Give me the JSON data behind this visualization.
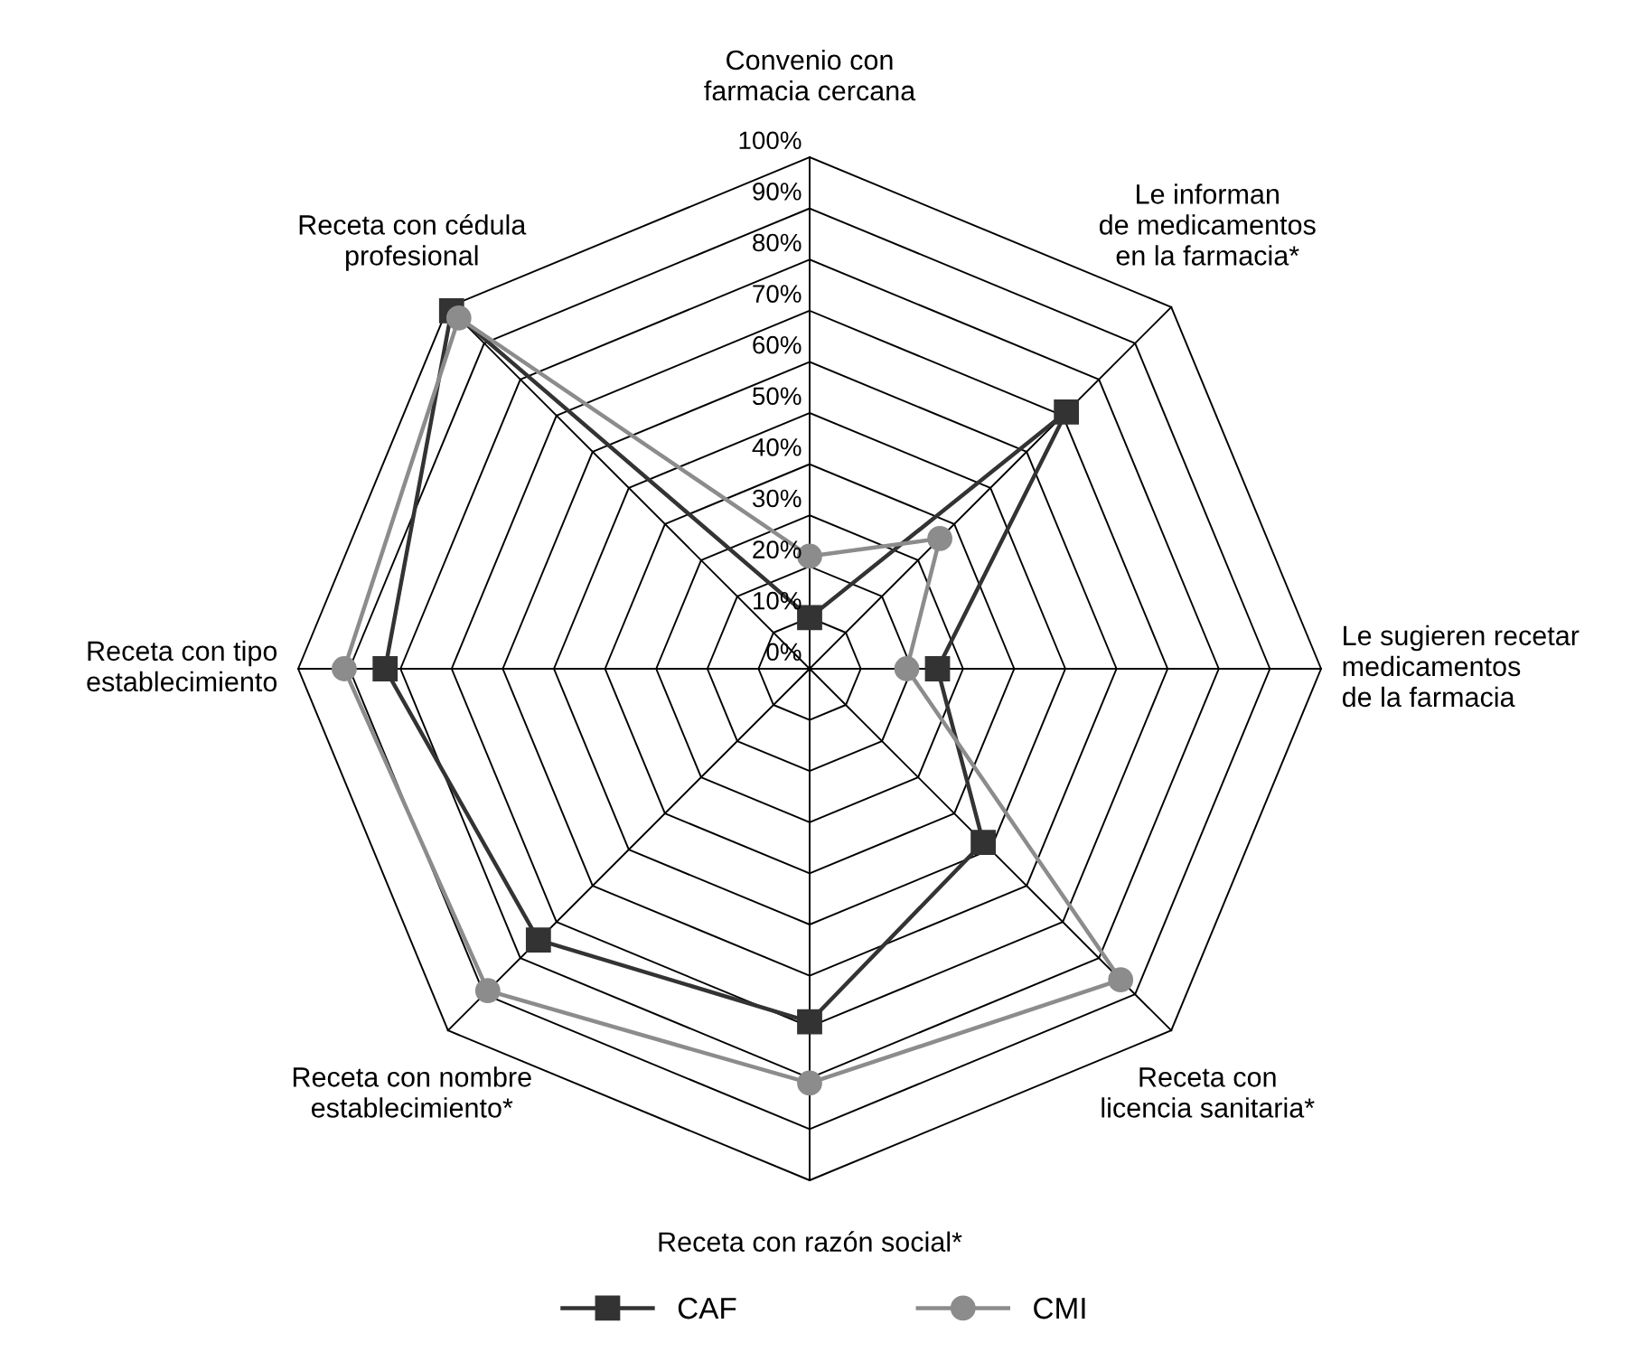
{
  "chart_data": {
    "type": "radar",
    "categories": [
      "Convenio con\nfarmacia cercana",
      "Le informan\nde medicamentos\nen la farmacia*",
      "Le sugieren recetar\nmedicamentos\nde la farmacia",
      "Receta con\nlicencia sanitaria*",
      "Receta con razón social*",
      "Receta con nombre\nestablecimiento*",
      "Receta con tipo\nestablecimiento",
      "Receta con cédula\nprofesional"
    ],
    "series": [
      {
        "name": "CAF",
        "color": "#333333",
        "marker": "square",
        "values": [
          10,
          71,
          25,
          48,
          69,
          75,
          83,
          99
        ]
      },
      {
        "name": "CMI",
        "color": "#8c8c8c",
        "marker": "circle",
        "values": [
          22,
          36,
          19,
          86,
          81,
          89,
          91,
          97
        ]
      }
    ],
    "ylim": [
      0,
      100
    ],
    "yticks": [
      {
        "value": 0,
        "label": "0%"
      },
      {
        "value": 10,
        "label": "10%"
      },
      {
        "value": 20,
        "label": "20%"
      },
      {
        "value": 30,
        "label": "30%"
      },
      {
        "value": 40,
        "label": "40%"
      },
      {
        "value": 50,
        "label": "50%"
      },
      {
        "value": 60,
        "label": "60%"
      },
      {
        "value": 70,
        "label": "70%"
      },
      {
        "value": 80,
        "label": "80%"
      },
      {
        "value": 90,
        "label": "90%"
      },
      {
        "value": 100,
        "label": "100%"
      }
    ],
    "grid": true,
    "legend": "bottom"
  }
}
